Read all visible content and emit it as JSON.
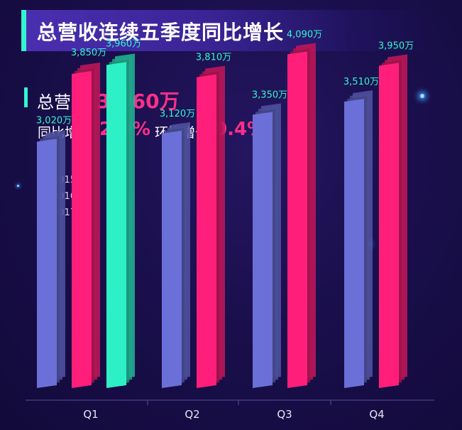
{
  "header": {
    "title": "总营收连续五季度同比增长"
  },
  "kpi": {
    "label": "总营收",
    "value": "3,960万",
    "yoy_label": "同比增长",
    "yoy_value": "2.9%",
    "qoq_label": "环比增长",
    "qoq_value": "0.4%"
  },
  "colors": {
    "accent": "#33f5cf",
    "highlight": "#ff2e8a"
  },
  "chart_data": {
    "type": "bar",
    "categories": [
      "Q1",
      "Q2",
      "Q3",
      "Q4"
    ],
    "series": [
      {
        "name": "2015年",
        "color": "#6b6fd8",
        "values": [
          3020,
          null,
          3350,
          3510
        ],
        "labels": [
          "3,020万",
          "",
          "3,350万",
          "3,510万"
        ]
      },
      {
        "name": "2016年",
        "color": "#ff1f7a",
        "values": [
          3850,
          3810,
          4090,
          3950
        ],
        "labels": [
          "3,850万",
          "3,810万",
          "4,090万",
          "3,950万"
        ]
      },
      {
        "name": "2017年",
        "color": "#2df0c6",
        "values": [
          3960,
          null,
          null,
          null
        ],
        "labels": [
          "3,960万",
          "",
          "",
          ""
        ]
      }
    ],
    "q2_extra": {
      "series": "2015年",
      "value": 3120,
      "label": "3,120万"
    },
    "legend_position": "top-left",
    "grid": false
  }
}
